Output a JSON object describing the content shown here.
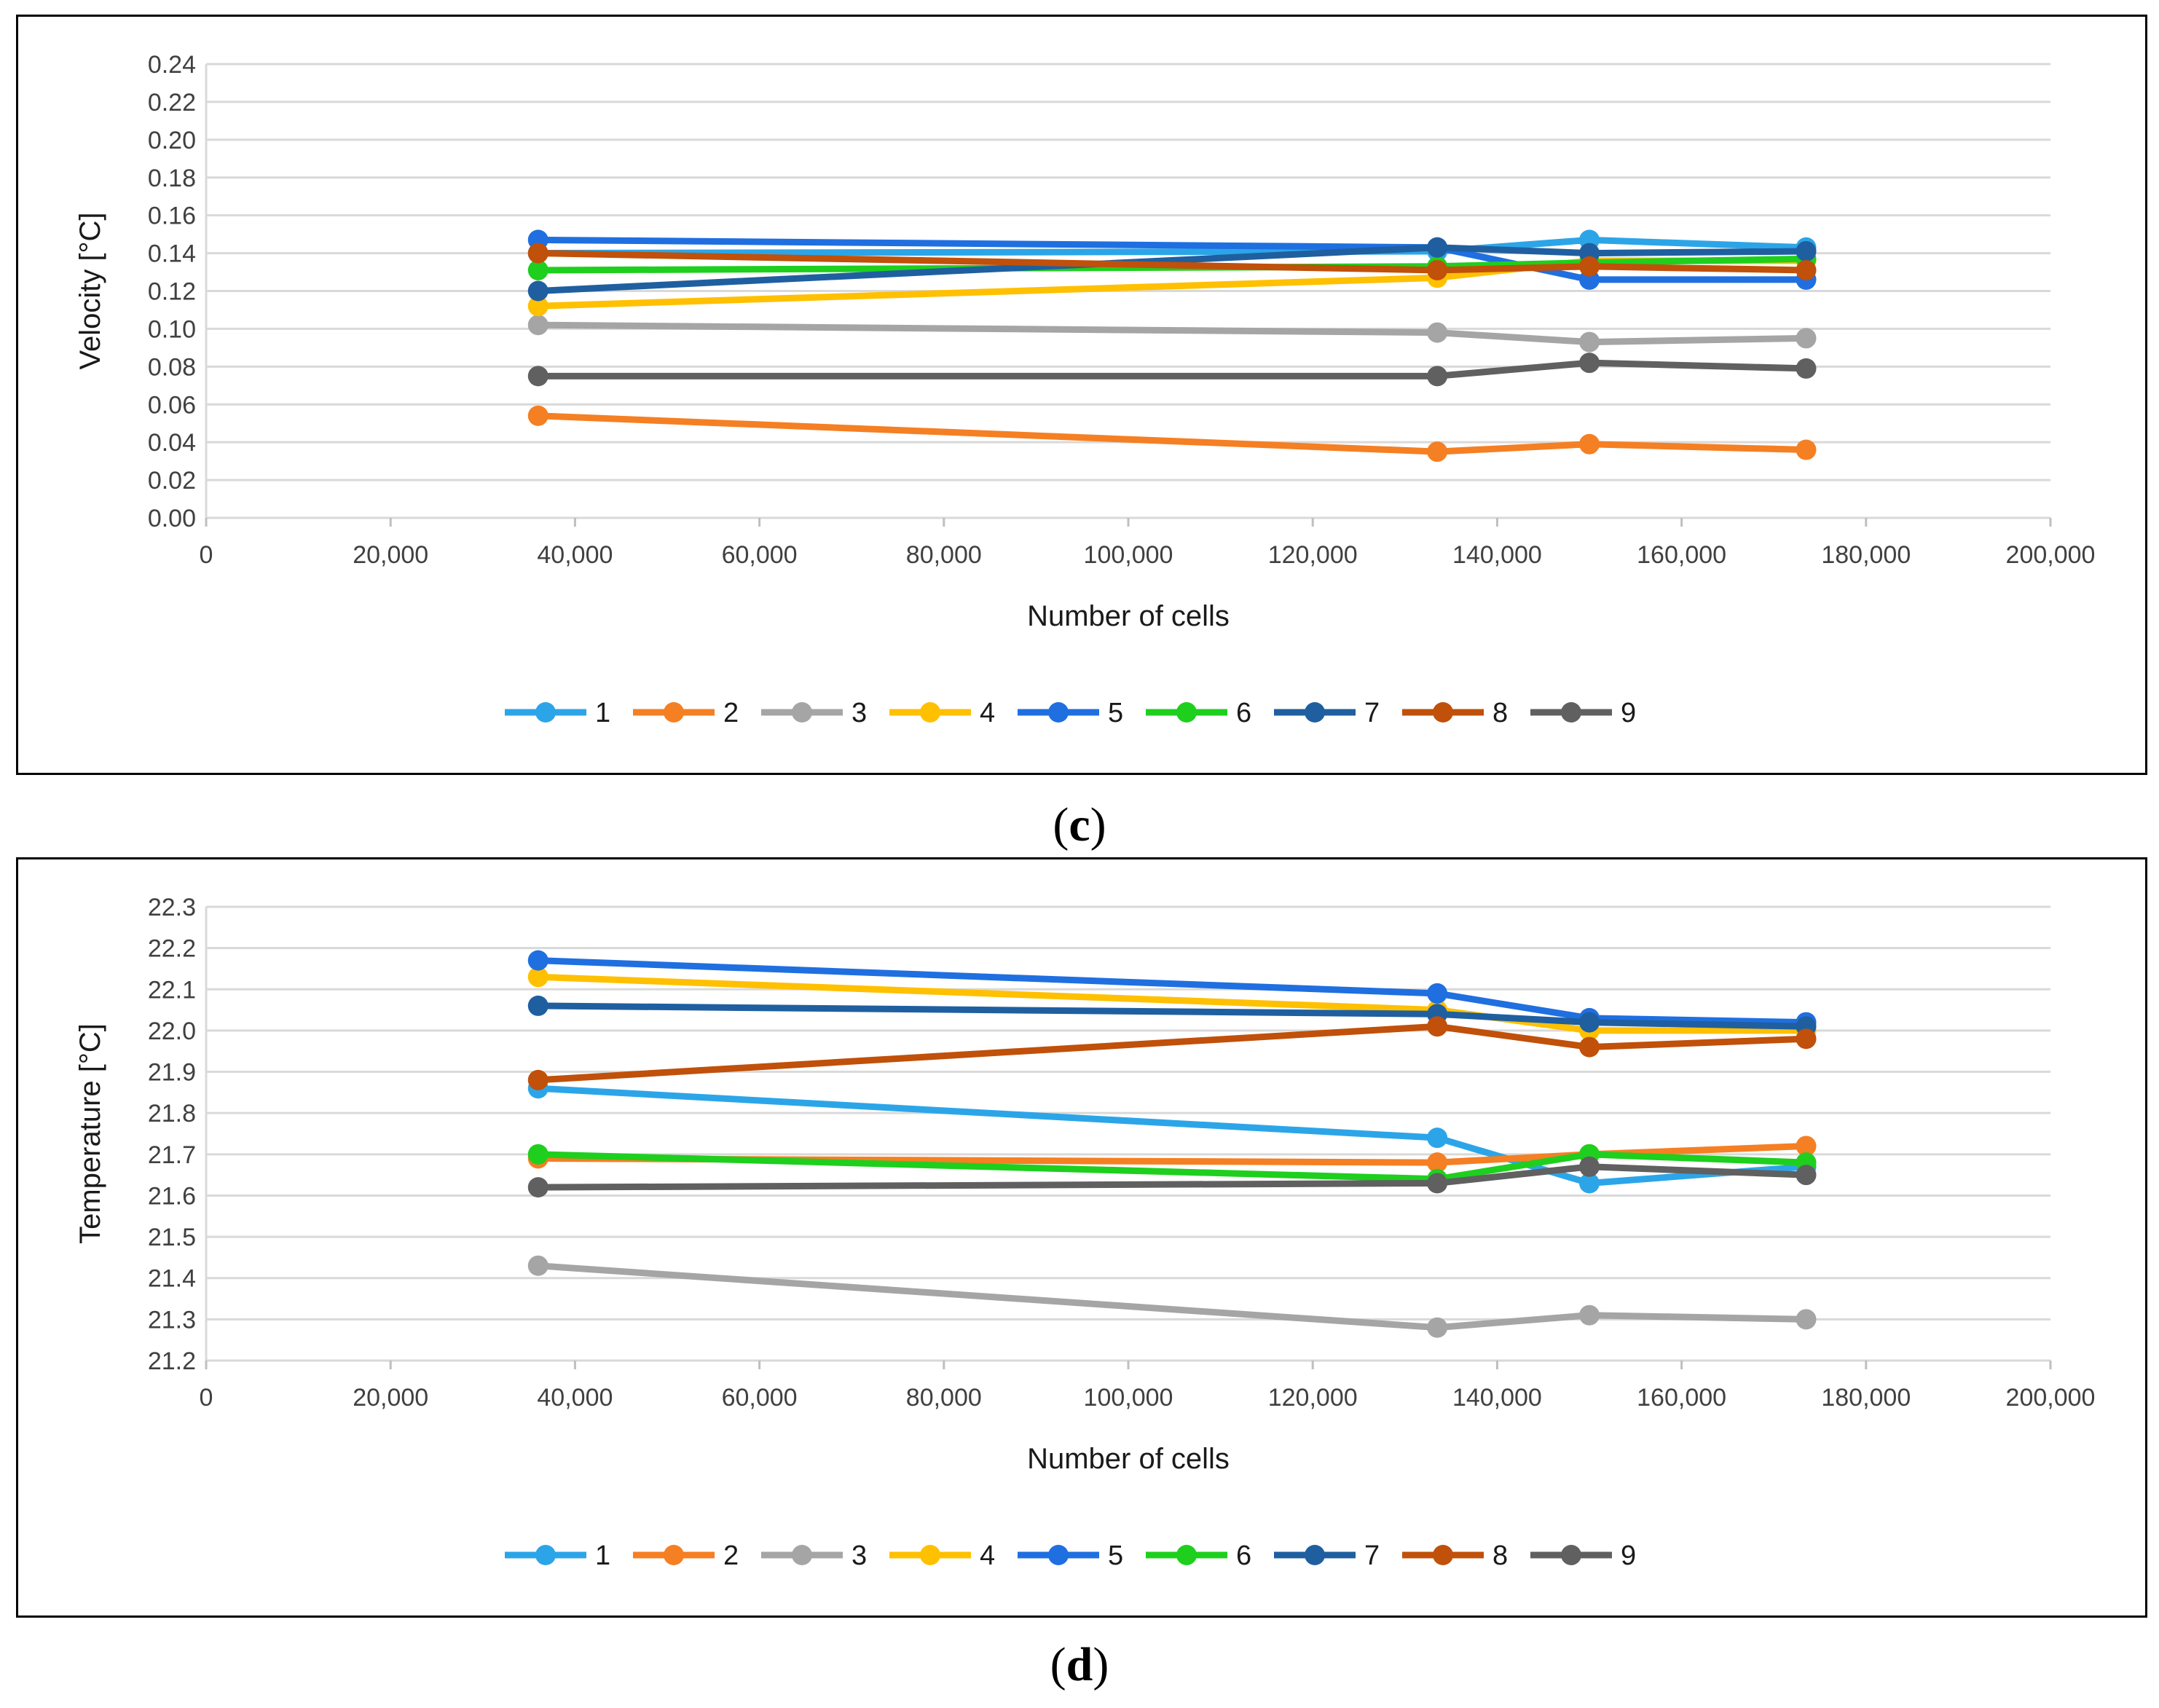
{
  "chart_data": [
    {
      "id": "c",
      "type": "line",
      "caption": "c",
      "xlabel": "Number of cells",
      "ylabel": "Velocity [°C]",
      "xlim": [
        0,
        200000
      ],
      "ylim": [
        0,
        0.24
      ],
      "xticks": [
        0,
        20000,
        40000,
        60000,
        80000,
        100000,
        120000,
        140000,
        160000,
        180000,
        200000
      ],
      "xtick_labels": [
        "0",
        "20,000",
        "40,000",
        "60,000",
        "80,000",
        "100,000",
        "120,000",
        "140,000",
        "160,000",
        "180,000",
        "200,000"
      ],
      "yticks": [
        0,
        0.02,
        0.04,
        0.06,
        0.08,
        0.1,
        0.12,
        0.14,
        0.16,
        0.18,
        0.2,
        0.22,
        0.24
      ],
      "ytick_labels": [
        "0.00",
        "0.02",
        "0.04",
        "0.06",
        "0.08",
        "0.10",
        "0.12",
        "0.14",
        "0.16",
        "0.18",
        "0.20",
        "0.22",
        "0.24"
      ],
      "grid": true,
      "legend_position": "bottom",
      "x": [
        36000,
        133500,
        150000,
        173500
      ],
      "series": [
        {
          "name": "1",
          "color": "#2CA5E8",
          "values": [
            0.14,
            0.141,
            0.147,
            0.143
          ]
        },
        {
          "name": "2",
          "color": "#F57F23",
          "values": [
            0.054,
            0.035,
            0.039,
            0.036
          ]
        },
        {
          "name": "3",
          "color": "#A5A5A5",
          "values": [
            0.102,
            0.098,
            0.093,
            0.095
          ]
        },
        {
          "name": "4",
          "color": "#FFC000",
          "values": [
            0.112,
            0.127,
            0.136,
            0.136
          ]
        },
        {
          "name": "5",
          "color": "#1F6FE0",
          "values": [
            0.147,
            0.143,
            0.126,
            0.126
          ]
        },
        {
          "name": "6",
          "color": "#1ECF1E",
          "values": [
            0.131,
            0.133,
            0.135,
            0.137
          ]
        },
        {
          "name": "7",
          "color": "#1F5FA0",
          "values": [
            0.12,
            0.143,
            0.14,
            0.141
          ]
        },
        {
          "name": "8",
          "color": "#C0500A",
          "values": [
            0.14,
            0.131,
            0.133,
            0.131
          ]
        },
        {
          "name": "9",
          "color": "#606060",
          "values": [
            0.075,
            0.075,
            0.082,
            0.079
          ]
        }
      ]
    },
    {
      "id": "d",
      "type": "line",
      "caption": "d",
      "xlabel": "Number of cells",
      "ylabel": "Temperature [°C]",
      "xlim": [
        0,
        200000
      ],
      "ylim": [
        21.2,
        22.3
      ],
      "xticks": [
        0,
        20000,
        40000,
        60000,
        80000,
        100000,
        120000,
        140000,
        160000,
        180000,
        200000
      ],
      "xtick_labels": [
        "0",
        "20,000",
        "40,000",
        "60,000",
        "80,000",
        "100,000",
        "120,000",
        "140,000",
        "160,000",
        "180,000",
        "200,000"
      ],
      "yticks": [
        21.2,
        21.3,
        21.4,
        21.5,
        21.6,
        21.7,
        21.8,
        21.9,
        22.0,
        22.1,
        22.2,
        22.3
      ],
      "ytick_labels": [
        "21.2",
        "21.3",
        "21.4",
        "21.5",
        "21.6",
        "21.7",
        "21.8",
        "21.9",
        "22.0",
        "22.1",
        "22.2",
        "22.3"
      ],
      "grid": true,
      "legend_position": "bottom",
      "x": [
        36000,
        133500,
        150000,
        173500
      ],
      "series": [
        {
          "name": "1",
          "color": "#2CA5E8",
          "values": [
            21.86,
            21.74,
            21.63,
            21.67
          ]
        },
        {
          "name": "2",
          "color": "#F57F23",
          "values": [
            21.69,
            21.68,
            21.7,
            21.72
          ]
        },
        {
          "name": "3",
          "color": "#A5A5A5",
          "values": [
            21.43,
            21.28,
            21.31,
            21.3
          ]
        },
        {
          "name": "4",
          "color": "#FFC000",
          "values": [
            22.13,
            22.05,
            22.0,
            22.0
          ]
        },
        {
          "name": "5",
          "color": "#1F6FE0",
          "values": [
            22.17,
            22.09,
            22.03,
            22.02
          ]
        },
        {
          "name": "6",
          "color": "#1ECF1E",
          "values": [
            21.7,
            21.64,
            21.7,
            21.68
          ]
        },
        {
          "name": "7",
          "color": "#1F5FA0",
          "values": [
            22.06,
            22.04,
            22.02,
            22.01
          ]
        },
        {
          "name": "8",
          "color": "#C0500A",
          "values": [
            21.88,
            22.01,
            21.96,
            21.98
          ]
        },
        {
          "name": "9",
          "color": "#606060",
          "values": [
            21.62,
            21.63,
            21.67,
            21.65
          ]
        }
      ]
    }
  ]
}
